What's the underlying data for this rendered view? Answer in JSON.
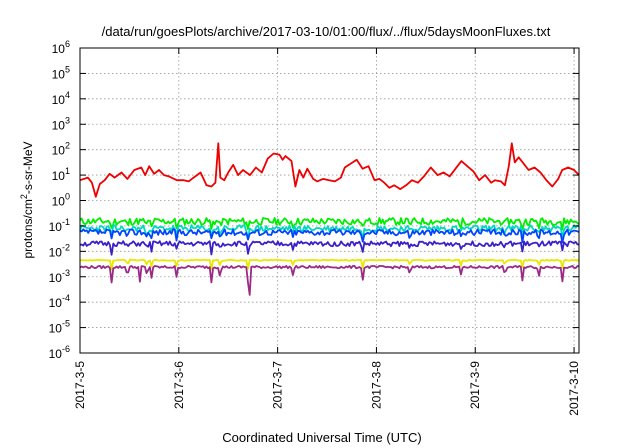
{
  "chart_data": {
    "type": "line",
    "title": "/data/run/goesPlots/archive/2017-03-10/01:00/flux/../flux/5daysMoonFluxes.txt",
    "xlabel": "Coordinated Universal Time (UTC)",
    "ylabel": {
      "pre": "protons/cm",
      "sup": "2",
      "post": "-s-sr-MeV"
    },
    "yscale": "log",
    "ylim_exp": [
      -6,
      6
    ],
    "yticks": [
      {
        "base": "10",
        "exp": "-6",
        "value": -6
      },
      {
        "base": "10",
        "exp": "-5",
        "value": -5
      },
      {
        "base": "10",
        "exp": "-4",
        "value": -4
      },
      {
        "base": "10",
        "exp": "-3",
        "value": -3
      },
      {
        "base": "10",
        "exp": "-2",
        "value": -2
      },
      {
        "base": "10",
        "exp": "-1",
        "value": -1
      },
      {
        "base": "10",
        "exp": "0",
        "value": 0
      },
      {
        "base": "10",
        "exp": "1",
        "value": 1
      },
      {
        "base": "10",
        "exp": "2",
        "value": 2
      },
      {
        "base": "10",
        "exp": "3",
        "value": 3
      },
      {
        "base": "10",
        "exp": "4",
        "value": 4
      },
      {
        "base": "10",
        "exp": "5",
        "value": 5
      },
      {
        "base": "10",
        "exp": "6",
        "value": 6
      }
    ],
    "xlim_days": [
      0,
      5.05
    ],
    "xticks": [
      {
        "label": "2017-3-5",
        "day": 0
      },
      {
        "label": "2017-3-6",
        "day": 1
      },
      {
        "label": "2017-3-7",
        "day": 2
      },
      {
        "label": "2017-3-8",
        "day": 3
      },
      {
        "label": "2017-3-9",
        "day": 4
      },
      {
        "label": "2017-3-10",
        "day": 5
      }
    ],
    "grid": true,
    "series": [
      {
        "color": "#ee0000",
        "values": [
          [
            0,
            0.8
          ],
          [
            0.08,
            0.9
          ],
          [
            0.12,
            0.7
          ],
          [
            0.16,
            0.15
          ],
          [
            0.2,
            0.65
          ],
          [
            0.25,
            0.8
          ],
          [
            0.3,
            1.05
          ],
          [
            0.35,
            0.9
          ],
          [
            0.42,
            1.1
          ],
          [
            0.48,
            0.85
          ],
          [
            0.55,
            1.2
          ],
          [
            0.62,
            1.3
          ],
          [
            0.66,
            1.0
          ],
          [
            0.7,
            1.35
          ],
          [
            0.75,
            1.05
          ],
          [
            0.8,
            1.2
          ],
          [
            0.85,
            1.0
          ],
          [
            0.9,
            0.95
          ],
          [
            0.98,
            0.8
          ],
          [
            1.05,
            0.8
          ],
          [
            1.1,
            0.75
          ],
          [
            1.15,
            0.9
          ],
          [
            1.22,
            1.1
          ],
          [
            1.28,
            0.6
          ],
          [
            1.33,
            0.55
          ],
          [
            1.37,
            0.7
          ],
          [
            1.4,
            2.25
          ],
          [
            1.42,
            0.9
          ],
          [
            1.46,
            0.8
          ],
          [
            1.5,
            1.1
          ],
          [
            1.55,
            1.4
          ],
          [
            1.6,
            1.0
          ],
          [
            1.65,
            1.2
          ],
          [
            1.72,
            1.0
          ],
          [
            1.78,
            1.3
          ],
          [
            1.84,
            1.1
          ],
          [
            1.9,
            1.65
          ],
          [
            1.96,
            1.85
          ],
          [
            2.02,
            1.8
          ],
          [
            2.05,
            1.6
          ],
          [
            2.08,
            1.75
          ],
          [
            2.11,
            1.65
          ],
          [
            2.14,
            1.55
          ],
          [
            2.18,
            0.55
          ],
          [
            2.22,
            1.2
          ],
          [
            2.26,
            0.9
          ],
          [
            2.3,
            1.25
          ],
          [
            2.36,
            0.85
          ],
          [
            2.4,
            0.75
          ],
          [
            2.46,
            0.85
          ],
          [
            2.52,
            0.8
          ],
          [
            2.58,
            0.75
          ],
          [
            2.64,
            0.9
          ],
          [
            2.68,
            1.3
          ],
          [
            2.74,
            1.45
          ],
          [
            2.8,
            1.6
          ],
          [
            2.86,
            1.25
          ],
          [
            2.92,
            1.35
          ],
          [
            2.98,
            0.8
          ],
          [
            3.03,
            0.85
          ],
          [
            3.08,
            0.7
          ],
          [
            3.13,
            0.5
          ],
          [
            3.18,
            0.6
          ],
          [
            3.24,
            0.45
          ],
          [
            3.3,
            0.6
          ],
          [
            3.36,
            0.8
          ],
          [
            3.42,
            0.7
          ],
          [
            3.48,
            0.95
          ],
          [
            3.55,
            1.3
          ],
          [
            3.62,
            1.0
          ],
          [
            3.68,
            1.1
          ],
          [
            3.74,
            0.95
          ],
          [
            3.8,
            1.25
          ],
          [
            3.86,
            1.55
          ],
          [
            3.92,
            1.35
          ],
          [
            3.98,
            1.15
          ],
          [
            4.04,
            0.8
          ],
          [
            4.1,
            1.0
          ],
          [
            4.16,
            0.7
          ],
          [
            4.2,
            0.8
          ],
          [
            4.26,
            0.75
          ],
          [
            4.3,
            0.6
          ],
          [
            4.34,
            1.35
          ],
          [
            4.37,
            2.25
          ],
          [
            4.4,
            1.5
          ],
          [
            4.44,
            1.7
          ],
          [
            4.48,
            1.5
          ],
          [
            4.54,
            1.2
          ],
          [
            4.6,
            1.3
          ],
          [
            4.66,
            1.1
          ],
          [
            4.72,
            0.8
          ],
          [
            4.78,
            0.55
          ],
          [
            4.84,
            0.85
          ],
          [
            4.88,
            1.2
          ],
          [
            4.94,
            1.3
          ],
          [
            5.0,
            1.2
          ],
          [
            5.05,
            1.0
          ]
        ]
      },
      {
        "color": "#00ee00",
        "base": -0.82,
        "amp": 0.14,
        "seed": 11
      },
      {
        "color": "#00d8c0",
        "base": -1.1,
        "amp": 0.13,
        "seed": 23
      },
      {
        "color": "#0044ff",
        "base": -1.25,
        "amp": 0.12,
        "seed": 37
      },
      {
        "color": "#3a20c8",
        "base": -1.7,
        "amp": 0.1,
        "seed": 51
      },
      {
        "color": "#e8e800",
        "base": -2.35,
        "amp": 0.02,
        "seed": 63
      },
      {
        "color": "#9a2a86",
        "base": -2.62,
        "amp": 0.05,
        "seed": 79
      }
    ]
  }
}
